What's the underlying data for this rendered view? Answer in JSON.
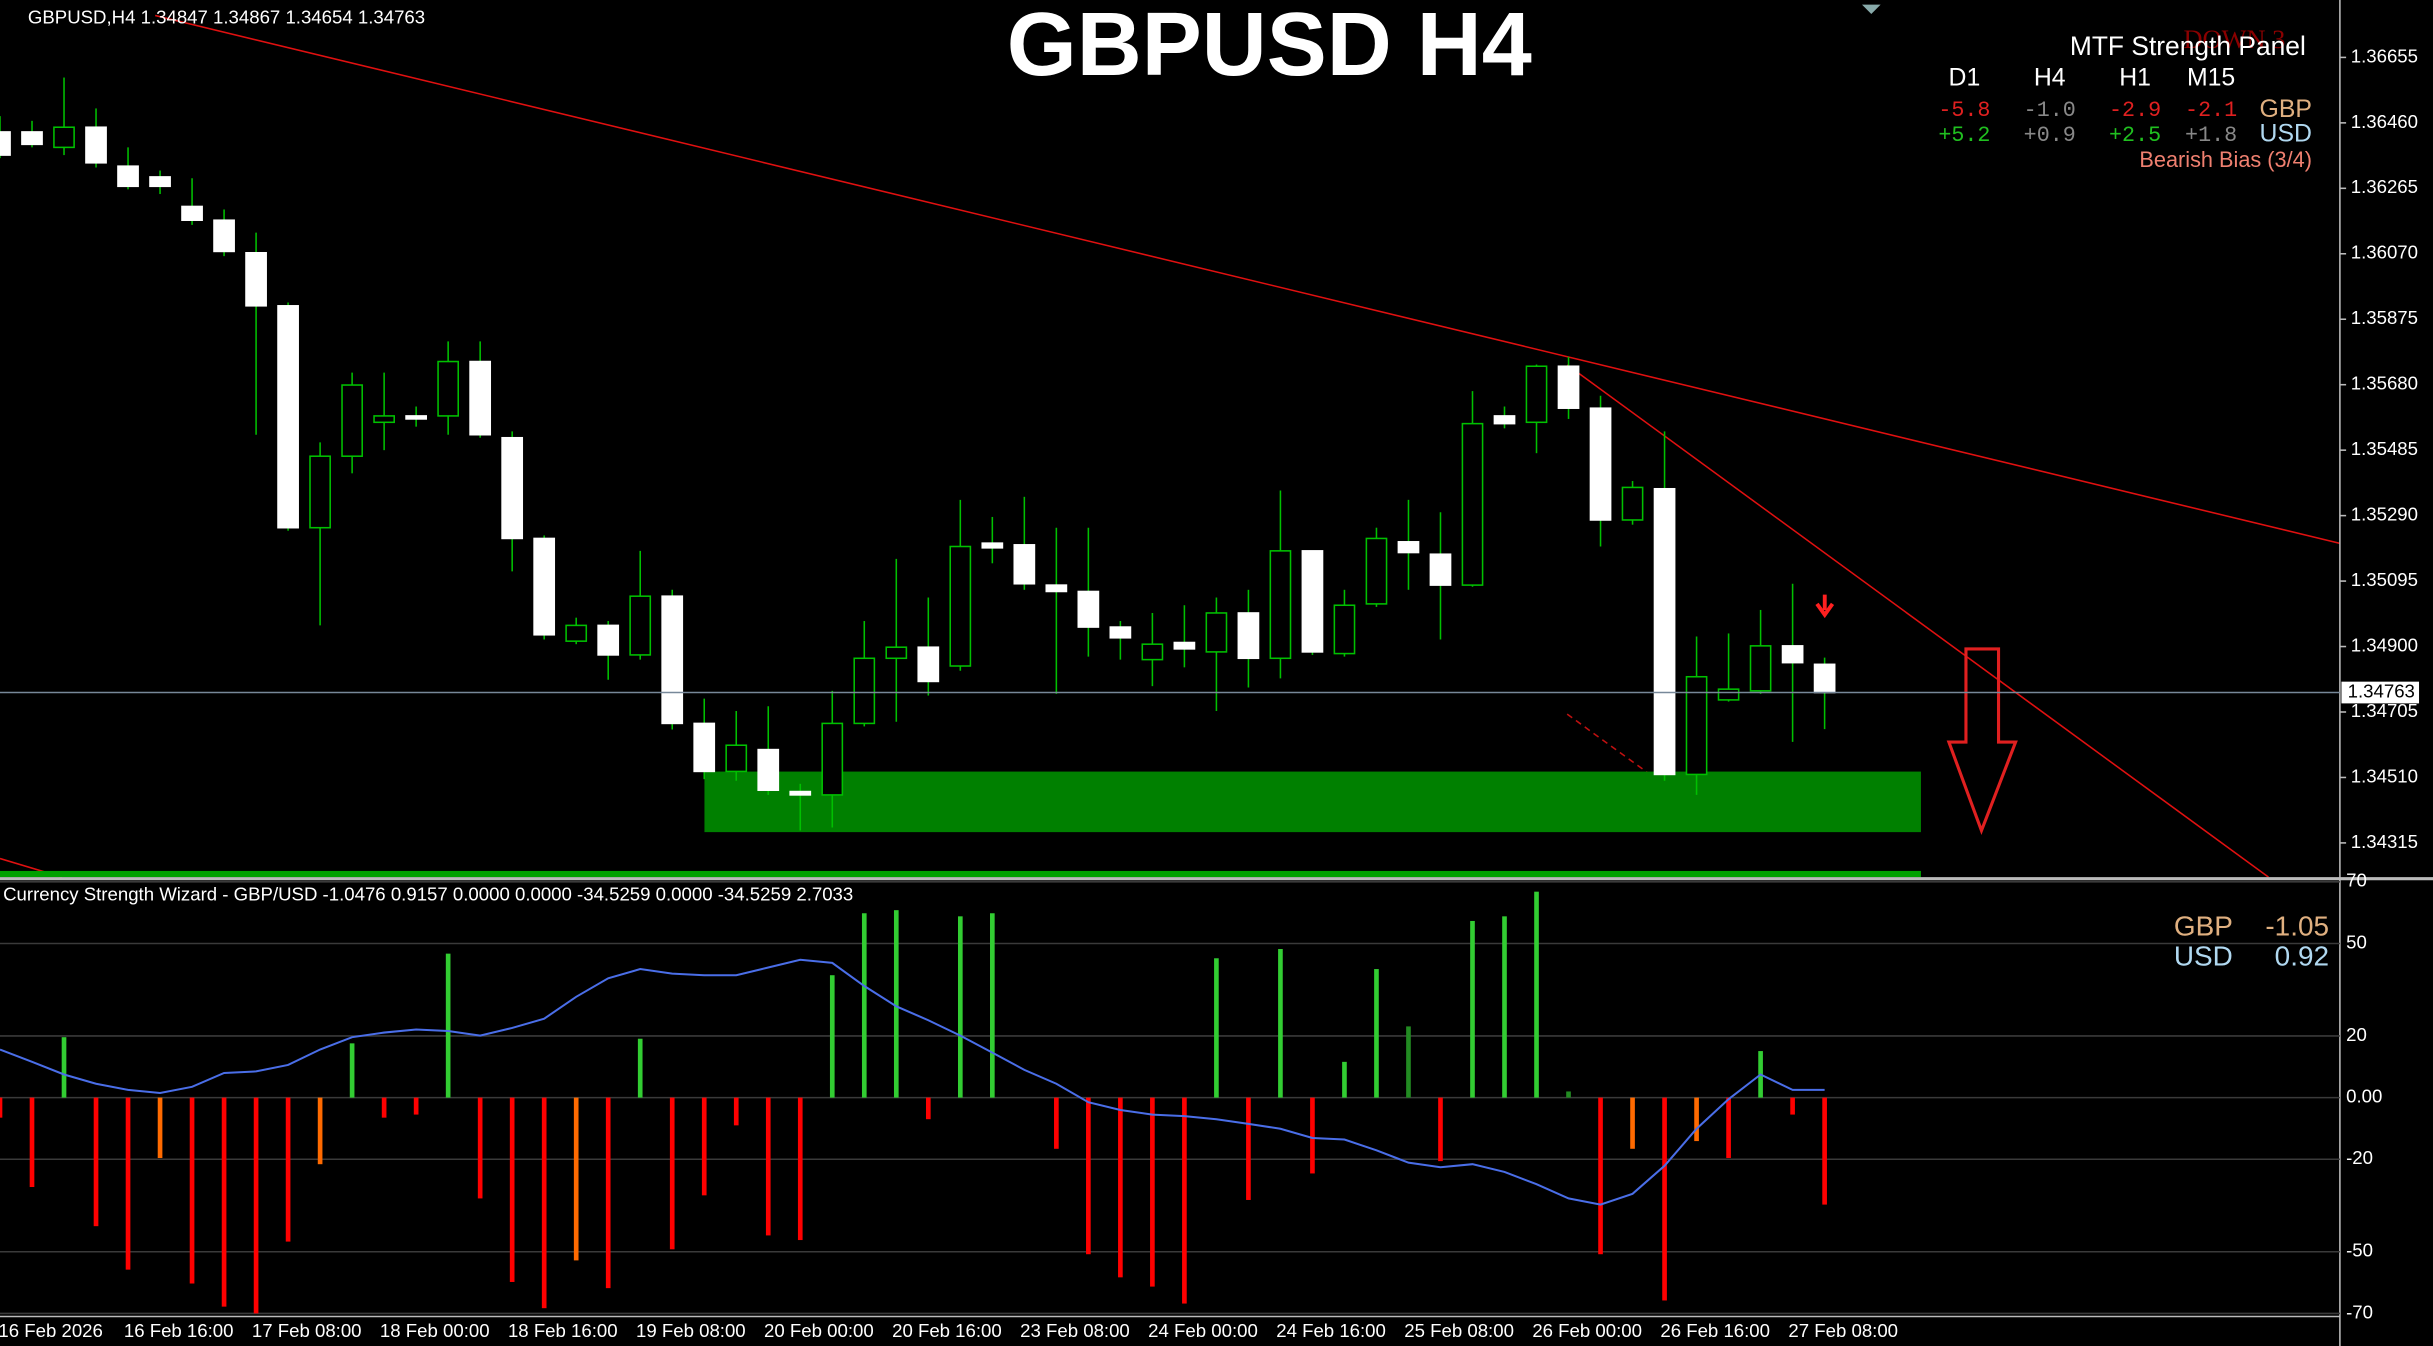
{
  "chart_data": [
    {
      "type": "candlestick",
      "title": "GBPUSD H4",
      "info": "GBPUSD,H4  1.34847 1.34867 1.34654 1.34763",
      "categories": [
        null,
        "16 Feb 2026",
        null,
        null,
        null,
        "16 Feb 16:00",
        null,
        null,
        null,
        "17 Feb 08:00",
        null,
        null,
        null,
        "18 Feb 00:00",
        null,
        null,
        null,
        "18 Feb 16:00",
        null,
        null,
        null,
        "19 Feb 08:00",
        null,
        null,
        null,
        "20 Feb 00:00",
        null,
        null,
        null,
        "20 Feb 16:00",
        null,
        null,
        null,
        "23 Feb 08:00",
        null,
        null,
        null,
        "24 Feb 00:00",
        null,
        null,
        null,
        "24 Feb 16:00",
        null,
        null,
        null,
        "25 Feb 08:00",
        null,
        null,
        null,
        "26 Feb 00:00",
        null,
        null,
        null,
        "26 Feb 16:00",
        null,
        null,
        null,
        "27 Feb 08:00"
      ],
      "open": [
        1.36433,
        1.36433,
        1.36387,
        1.36447,
        1.36331,
        1.36299,
        1.36211,
        1.3617,
        1.36073,
        1.35915,
        1.35254,
        1.35467,
        1.35568,
        1.35587,
        1.35587,
        1.35749,
        1.35522,
        1.35222,
        1.34916,
        1.34963,
        1.34875,
        1.3505,
        1.34671,
        1.34528,
        1.34593,
        1.34468,
        1.34458,
        1.34671,
        1.34865,
        1.34898,
        1.34842,
        1.35208,
        1.35203,
        1.35083,
        1.35064,
        1.34958,
        1.34861,
        1.34912,
        1.34884,
        1.35,
        1.34865,
        1.35185,
        1.34879,
        1.35027,
        1.35212,
        1.35175,
        1.35083,
        1.35587,
        1.35568,
        1.35735,
        1.3561,
        1.35277,
        1.3537,
        1.34519,
        1.34741,
        1.34768,
        1.34902,
        1.34847
      ],
      "high": [
        1.3648,
        1.36466,
        1.36595,
        1.36503,
        1.36387,
        1.36318,
        1.36295,
        1.36202,
        1.36133,
        1.35925,
        1.35508,
        1.35716,
        1.35716,
        1.35615,
        1.35809,
        1.35809,
        1.35541,
        1.35231,
        1.34986,
        1.34976,
        1.35185,
        1.35069,
        1.34745,
        1.34708,
        1.34722,
        1.34491,
        1.34768,
        1.34976,
        1.35161,
        1.35046,
        1.35337,
        1.35286,
        1.35346,
        1.35254,
        1.35254,
        1.34976,
        1.35,
        1.35023,
        1.35046,
        1.35069,
        1.35365,
        1.35185,
        1.35069,
        1.35254,
        1.35337,
        1.353,
        1.35661,
        1.35615,
        1.3574,
        1.35763,
        1.35647,
        1.35393,
        1.35541,
        1.3493,
        1.34939,
        1.35009,
        1.35087,
        1.34867
      ],
      "low": [
        1.36355,
        1.36387,
        1.36364,
        1.36327,
        1.36262,
        1.36248,
        1.36156,
        1.36063,
        1.35531,
        1.35245,
        1.34963,
        1.35416,
        1.35485,
        1.35555,
        1.35531,
        1.35522,
        1.35124,
        1.34921,
        1.34907,
        1.34801,
        1.34861,
        1.34653,
        1.34505,
        1.345,
        1.34458,
        1.34352,
        1.34361,
        1.34662,
        1.34676,
        1.34754,
        1.34828,
        1.35148,
        1.35069,
        1.34759,
        1.3487,
        1.34861,
        1.34782,
        1.34838,
        1.34708,
        1.34778,
        1.34805,
        1.34875,
        1.3487,
        1.35018,
        1.35069,
        1.34921,
        1.35078,
        1.3555,
        1.35476,
        1.35578,
        1.35198,
        1.35263,
        1.345,
        1.34458,
        1.34736,
        1.34759,
        1.34616,
        1.34654
      ],
      "close": [
        1.36364,
        1.36396,
        1.36447,
        1.36341,
        1.36271,
        1.36271,
        1.3617,
        1.36077,
        1.35915,
        1.35254,
        1.35467,
        1.35679,
        1.35587,
        1.35578,
        1.35749,
        1.35531,
        1.35222,
        1.34935,
        1.34963,
        1.34875,
        1.3505,
        1.34671,
        1.34528,
        1.34606,
        1.34472,
        1.34458,
        1.34671,
        1.34865,
        1.34898,
        1.34796,
        1.35198,
        1.35194,
        1.35087,
        1.35064,
        1.34958,
        1.34926,
        1.34907,
        1.34893,
        1.35,
        1.34865,
        1.35185,
        1.34884,
        1.35023,
        1.35222,
        1.3518,
        1.35083,
        1.35564,
        1.35564,
        1.35735,
        1.3561,
        1.35277,
        1.35374,
        1.34519,
        1.3481,
        1.34773,
        1.34902,
        1.34852,
        1.34763
      ],
      "colors": {
        "up": "#000000",
        "down": "#ffffff",
        "wick": "#00c000"
      },
      "bid": 1.34763,
      "ylim": [
        1.34213,
        1.36826
      ],
      "yticks": [
        1.36655,
        {
          "value": 1.3646,
          "label": "1.36460"
        },
        1.36265,
        {
          "value": 1.3607,
          "label": "1.36070"
        },
        1.35875,
        {
          "value": 1.3568,
          "label": "1.35680"
        },
        1.35485,
        {
          "value": 1.3529,
          "label": "1.35290"
        },
        1.35095,
        {
          "value": 1.349,
          "label": "1.34900"
        },
        1.34705,
        {
          "value": 1.3451,
          "label": "1.34510"
        },
        1.34315
      ]
    },
    {
      "type": "bar_line",
      "title": "Currency Strength Wizard - GBP/USD -1.0476 0.9157 0.0000 0.0000 -34.5259 0.0000 -34.5259 2.7033",
      "series": [
        {
          "type": "bar",
          "values": [
            -6.5,
            -29,
            19.6,
            -41.7,
            -55.8,
            -19.6,
            -60.3,
            -67.8,
            -70,
            -46.7,
            -21.6,
            17.6,
            -6.5,
            -5.5,
            46.7,
            -32.7,
            -59.8,
            -68.3,
            -52.8,
            -61.8,
            19.1,
            -49.2,
            -31.7,
            -9,
            -44.7,
            -46.2,
            39.7,
            59.8,
            60.8,
            -7,
            58.8,
            59.8,
            0,
            -16.6,
            -50.8,
            -58.3,
            -61.3,
            -66.8,
            45.2,
            -33.2,
            48.2,
            -24.6,
            11.6,
            41.7,
            23.1,
            -20.6,
            57.3,
            58.8,
            66.8,
            2,
            -50.8,
            -16.6,
            -65.8,
            -14.1,
            -19.6,
            15.1,
            -5.5,
            -34.7
          ],
          "colors": [
            "#ff0000",
            "#ff0000",
            "#32cd32",
            "#ff0000",
            "#ff0000",
            "#ff6a00",
            "#ff0000",
            "#ff0000",
            "#ff0000",
            "#ff0000",
            "#ff6a00",
            "#32cd32",
            "#ff0000",
            "#ff0000",
            "#32cd32",
            "#ff0000",
            "#ff0000",
            "#ff0000",
            "#ff6a00",
            "#ff0000",
            "#32cd32",
            "#ff0000",
            "#ff0000",
            "#ff0000",
            "#ff0000",
            "#ff0000",
            "#32cd32",
            "#32cd32",
            "#32cd32",
            "#ff0000",
            "#32cd32",
            "#32cd32",
            "#32cd32",
            "#ff0000",
            "#ff0000",
            "#ff0000",
            "#ff0000",
            "#ff0000",
            "#32cd32",
            "#ff0000",
            "#32cd32",
            "#ff0000",
            "#32cd32",
            "#32cd32",
            "#228b22",
            "#ff0000",
            "#32cd32",
            "#32cd32",
            "#32cd32",
            "#228b22",
            "#ff0000",
            "#ff6a00",
            "#ff0000",
            "#ff6a00",
            "#ff0000",
            "#32cd32",
            "#ff0000",
            "#ff0000"
          ]
        },
        {
          "type": "line",
          "color": "#4a6ee8",
          "values": [
            15.6,
            11.6,
            7.5,
            4.5,
            2.5,
            1.5,
            3.5,
            8,
            8.5,
            10.6,
            15.6,
            19.6,
            21.1,
            22.1,
            21.6,
            20.1,
            22.6,
            25.6,
            32.7,
            38.7,
            41.7,
            40.2,
            39.7,
            39.7,
            42.2,
            44.7,
            43.7,
            36.2,
            29.6,
            25.1,
            20.1,
            14.6,
            9,
            4.5,
            -1.5,
            -4,
            -5.5,
            -6,
            -7,
            -8.5,
            -10.1,
            -13.1,
            -13.6,
            -17.1,
            -21.1,
            -22.6,
            -21.6,
            -24.1,
            -28.1,
            -32.7,
            -34.7,
            -31.2,
            -22.1,
            -10.1,
            -0.5,
            7.5,
            2.5,
            2.5
          ]
        }
      ],
      "legend": [
        {
          "name": "GBP",
          "value": -1.05
        },
        {
          "name": "USD",
          "value": 0.92
        }
      ],
      "ylim": [
        -71,
        70
      ],
      "yticks": [
        70,
        50,
        20,
        {
          "value": 0,
          "label": "0.00"
        },
        -20,
        -50,
        -70
      ],
      "grid": true
    }
  ],
  "mtf_panel": {
    "title": "MTF Strength Panel",
    "signal": "DOWN 3",
    "columns": [
      "D1",
      "H4",
      "H1",
      "M15"
    ],
    "rows": [
      {
        "name": "GBP",
        "values": [
          "-5.8",
          "-1.0",
          "-2.9",
          "-2.1"
        ]
      },
      {
        "name": "USD",
        "values": [
          "+5.2",
          "+0.9",
          "+2.5",
          "+1.8"
        ]
      }
    ],
    "bias": "Bearish Bias (3/4)"
  }
}
